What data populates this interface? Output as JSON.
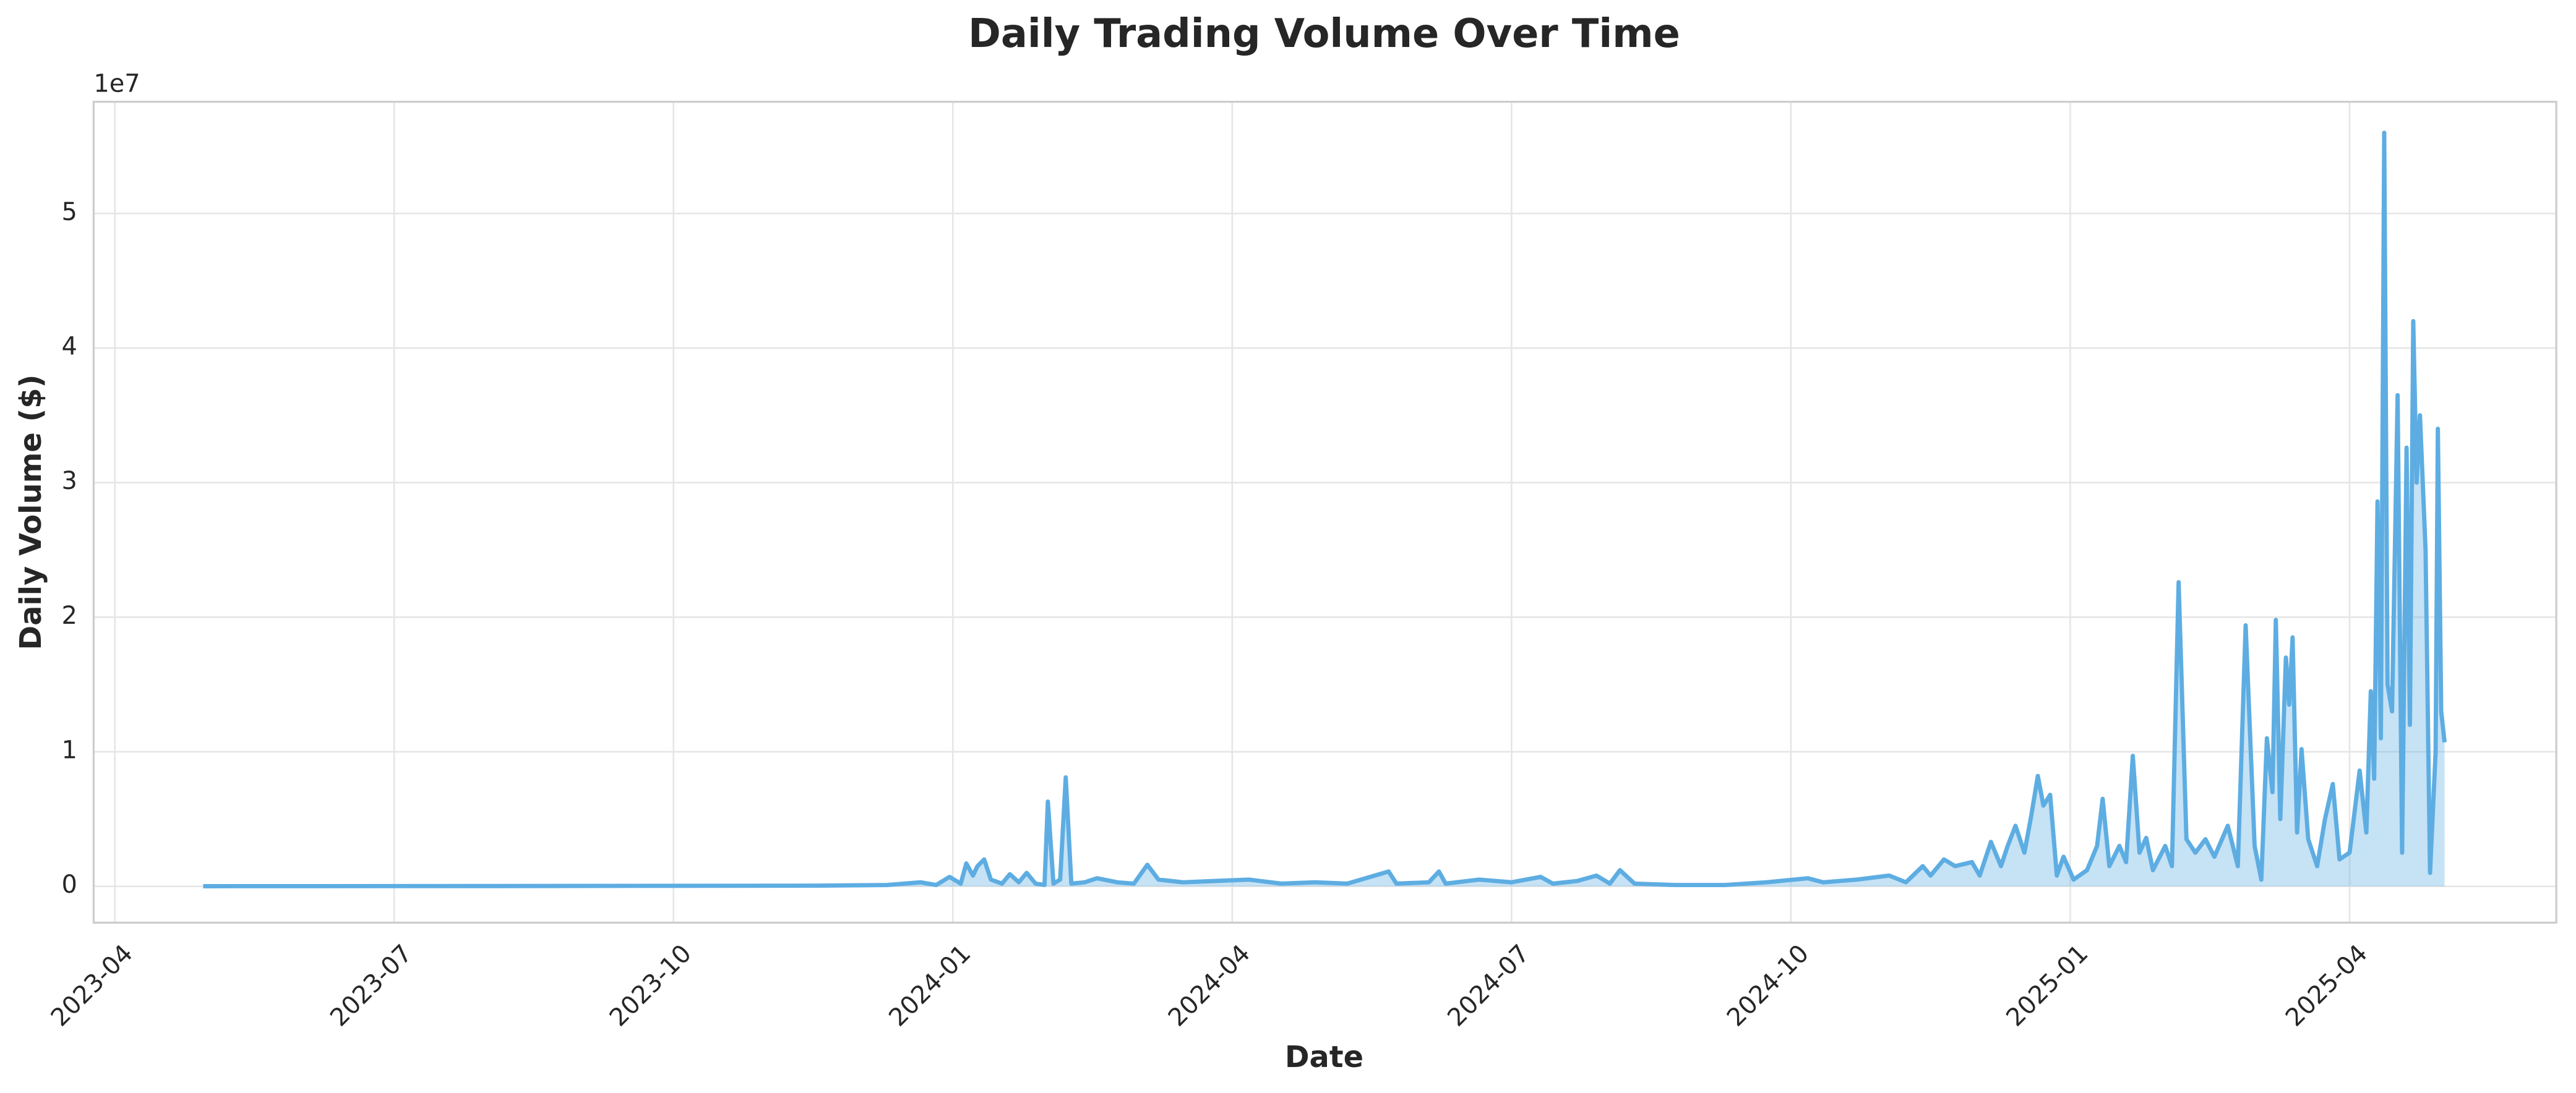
{
  "chart_data": {
    "type": "area_line",
    "title": "Daily Trading Volume Over Time",
    "xlabel": "Date",
    "ylabel": "Daily Volume ($)",
    "y_offset_label": "1e7",
    "color": "#5DADE2",
    "grid": true,
    "xlim": [
      2023.231,
      2025.435
    ],
    "ylim": [
      -2700000,
      58300000
    ],
    "xticks": [
      {
        "value": 2023.25,
        "label": "2023-04"
      },
      {
        "value": 2023.5,
        "label": "2023-07"
      },
      {
        "value": 2023.75,
        "label": "2023-10"
      },
      {
        "value": 2024,
        "label": "2024-01"
      },
      {
        "value": 2024.25,
        "label": "2024-04"
      },
      {
        "value": 2024.5,
        "label": "2024-07"
      },
      {
        "value": 2024.75,
        "label": "2024-10"
      },
      {
        "value": 2025,
        "label": "2025-01"
      },
      {
        "value": 2025.25,
        "label": "2025-04"
      }
    ],
    "yticks": [
      0,
      {
        "value": 10000000,
        "label": "1"
      },
      {
        "value": 20000000,
        "label": "2"
      },
      {
        "value": 30000000,
        "label": "3"
      },
      {
        "value": 40000000,
        "label": "4"
      },
      {
        "value": 50000000,
        "label": "5"
      }
    ],
    "x": [
      2023.329,
      2023.588,
      2023.882,
      2023.941,
      2023.971,
      2023.985,
      2023.997,
      2024.007,
      2024.012,
      2024.018,
      2024.022,
      2024.028,
      2024.034,
      2024.044,
      2024.051,
      2024.059,
      2024.066,
      2024.074,
      2024.082,
      2024.085,
      2024.09,
      2024.096,
      2024.101,
      2024.106,
      2024.118,
      2024.129,
      2024.147,
      2024.162,
      2024.174,
      2024.184,
      2024.206,
      2024.235,
      2024.265,
      2024.294,
      2024.324,
      2024.353,
      2024.39,
      2024.397,
      2024.426,
      2024.435,
      2024.441,
      2024.471,
      2024.5,
      2024.526,
      2024.537,
      2024.559,
      2024.576,
      2024.588,
      2024.597,
      2024.61,
      2024.647,
      2024.691,
      2024.728,
      2024.765,
      2024.779,
      2024.809,
      2024.838,
      2024.853,
      2024.868,
      2024.875,
      2024.887,
      2024.897,
      2024.912,
      2024.919,
      2024.929,
      2024.938,
      2024.944,
      2024.951,
      2024.959,
      2024.965,
      2024.971,
      2024.976,
      2024.982,
      2024.988,
      2024.994,
      2025.003,
      2025.015,
      2025.024,
      2025.029,
      2025.035,
      2025.044,
      2025.05,
      2025.056,
      2025.062,
      2025.068,
      2025.074,
      2025.085,
      2025.091,
      2025.097,
      2025.104,
      2025.112,
      2025.121,
      2025.129,
      2025.141,
      2025.15,
      2025.157,
      2025.165,
      2025.171,
      2025.176,
      2025.181,
      2025.184,
      2025.188,
      2025.193,
      2025.196,
      2025.199,
      2025.203,
      2025.207,
      2025.213,
      2025.221,
      2025.228,
      2025.235,
      2025.241,
      2025.25,
      2025.259,
      2025.265,
      2025.269,
      2025.272,
      2025.275,
      2025.278,
      2025.281,
      2025.284,
      2025.288,
      2025.293,
      2025.297,
      2025.301,
      2025.304,
      2025.307,
      2025.31,
      2025.313,
      2025.318,
      2025.322,
      2025.327,
      2025.329,
      2025.332,
      2025.335
    ],
    "values": [
      10000,
      20000,
      50000,
      100000,
      300000,
      100000,
      700000,
      200000,
      1700000,
      800000,
      1500000,
      2000000,
      500000,
      200000,
      900000,
      300000,
      1000000,
      200000,
      100000,
      6300000,
      200000,
      500000,
      8100000,
      200000,
      300000,
      600000,
      300000,
      200000,
      1600000,
      500000,
      300000,
      400000,
      500000,
      200000,
      300000,
      200000,
      1100000,
      200000,
      300000,
      1100000,
      200000,
      500000,
      300000,
      700000,
      200000,
      400000,
      800000,
      200000,
      1200000,
      200000,
      100000,
      100000,
      300000,
      600000,
      300000,
      500000,
      800000,
      300000,
      1500000,
      800000,
      2000000,
      1500000,
      1800000,
      800000,
      3300000,
      1500000,
      3000000,
      4500000,
      2500000,
      5200000,
      8200000,
      6000000,
      6800000,
      800000,
      2200000,
      500000,
      1200000,
      3000000,
      6500000,
      1500000,
      3000000,
      1800000,
      9700000,
      2500000,
      3600000,
      1200000,
      3000000,
      1500000,
      22600000,
      3500000,
      2500000,
      3500000,
      2200000,
      4500000,
      1500000,
      19400000,
      3000000,
      500000,
      11000000,
      7000000,
      19800000,
      5000000,
      17000000,
      13500000,
      18500000,
      4000000,
      10200000,
      3500000,
      1500000,
      5000000,
      7600000,
      2000000,
      2500000,
      8600000,
      4000000,
      14500000,
      8000000,
      28600000,
      11000000,
      56000000,
      15000000,
      13000000,
      36500000,
      2500000,
      32600000,
      12000000,
      42000000,
      30000000,
      35000000,
      25000000,
      1000000,
      10000000,
      34000000,
      13000000,
      10700000
    ]
  }
}
